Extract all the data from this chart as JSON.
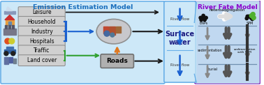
{
  "title_left": "Emission Estimation Model",
  "title_right": "River Fate Model",
  "title_left_color": "#1a6fbd",
  "title_right_color": "#8b00cc",
  "left_box_color": "#cde8f8",
  "left_box_edge": "#6ab0e8",
  "right_box_color": "#b8d8f0",
  "right_box_edge": "#6090c8",
  "surface_water_box_color": "#cde8f8",
  "surface_water_box_edge": "#6ab0e8",
  "source_labels": [
    "Leisure",
    "Household",
    "Industry",
    "Hospitals",
    "Traffic",
    "Land cover"
  ],
  "source_box_color": "#d0d0d0",
  "source_box_edge": "#909090",
  "roads_box_color": "#b0b0b0",
  "roads_box_edge": "#707070",
  "arrow_black": "#1a1a1a",
  "arrow_blue": "#1a60d0",
  "arrow_orange": "#e07820",
  "arrow_green": "#30a030",
  "bg_color": "#ffffff",
  "outer_border_color": "#c090d8",
  "river_fate_bg": "#b0ccec",
  "river_fate_inner_bg": "#c0d8f0",
  "divider_color": "#7090b0"
}
